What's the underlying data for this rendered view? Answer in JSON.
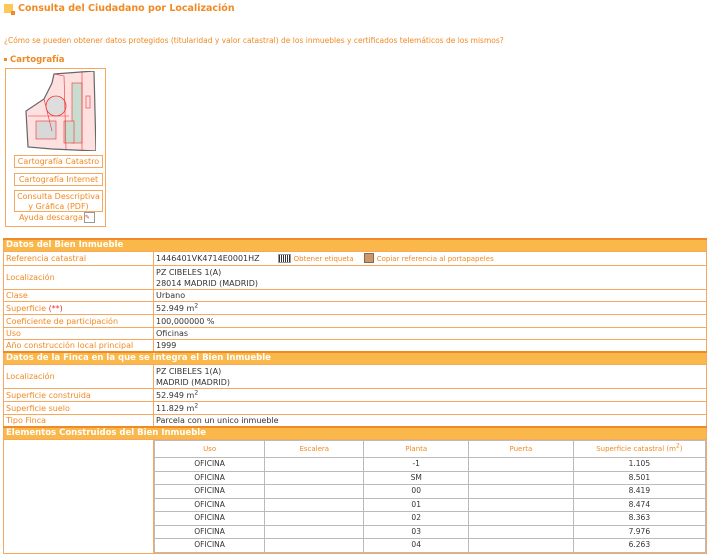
{
  "title": "Consulta del Ciudadano por Localización",
  "question": "¿Cómo se pueden obtener datos protegidos (titularidad y valor catastral) de los inmuebles y certificados telemáticos de los mismos?",
  "cartografia": {
    "heading": "Cartografía",
    "buttons": [
      "Cartografía Catastro",
      "Cartografía Internet"
    ],
    "pdf_line1": "Consulta Descriptiva",
    "pdf_line2": "y Gráfica (PDF)",
    "ayuda": "Ayuda descarga"
  },
  "bien": {
    "header": "Datos del Bien Inmueble",
    "ref_label": "Referencia catastral",
    "ref": "1446401VK4714E0001HZ",
    "etiqueta": "Obtener etiqueta",
    "copiar": "Copiar referencia al portapapeles",
    "loc_label": "Localización",
    "loc1": "PZ CIBELES 1(A)",
    "loc2": "28014 MADRID (MADRID)",
    "clase_label": "Clase",
    "clase": "Urbano",
    "sup_label": "Superficie ",
    "sup_mark": "(**)",
    "sup": "52.949 m",
    "coef_label": "Coeficiente de participación",
    "coef": "100,000000 %",
    "uso_label": "Uso",
    "uso": "Oficinas",
    "anio_label": "Año construcción local principal",
    "anio": "1999"
  },
  "finca": {
    "header": "Datos de la Finca en la que se integra el Bien Inmueble",
    "loc_label": "Localización",
    "loc1": "PZ CIBELES 1(A)",
    "loc2": "MADRID (MADRID)",
    "supc_label": "Superficie construida",
    "supc": "52.949 m",
    "sups_label": "Superficie suelo",
    "sups": "11.829 m",
    "tipo_label": "Tipo Finca",
    "tipo": "Parcela con un unico inmueble"
  },
  "elementos": {
    "header": "Elementos Construidos del Bien Inmueble",
    "columns": [
      "Uso",
      "Escalera",
      "Planta",
      "Puerta",
      "Superficie catastral (m"
    ],
    "rows": [
      [
        "OFICINA",
        "",
        "-1",
        "",
        "1.105"
      ],
      [
        "OFICINA",
        "",
        "SM",
        "",
        "8.501"
      ],
      [
        "OFICINA",
        "",
        "00",
        "",
        "8.419"
      ],
      [
        "OFICINA",
        "",
        "01",
        "",
        "8.474"
      ],
      [
        "OFICINA",
        "",
        "02",
        "",
        "8.363"
      ],
      [
        "OFICINA",
        "",
        "03",
        "",
        "7.976"
      ],
      [
        "OFICINA",
        "",
        "04",
        "",
        "6.263"
      ]
    ]
  },
  "colors": {
    "accent": "#f08a24",
    "header_bg": "#fbb84a",
    "border": "#f6a860"
  }
}
